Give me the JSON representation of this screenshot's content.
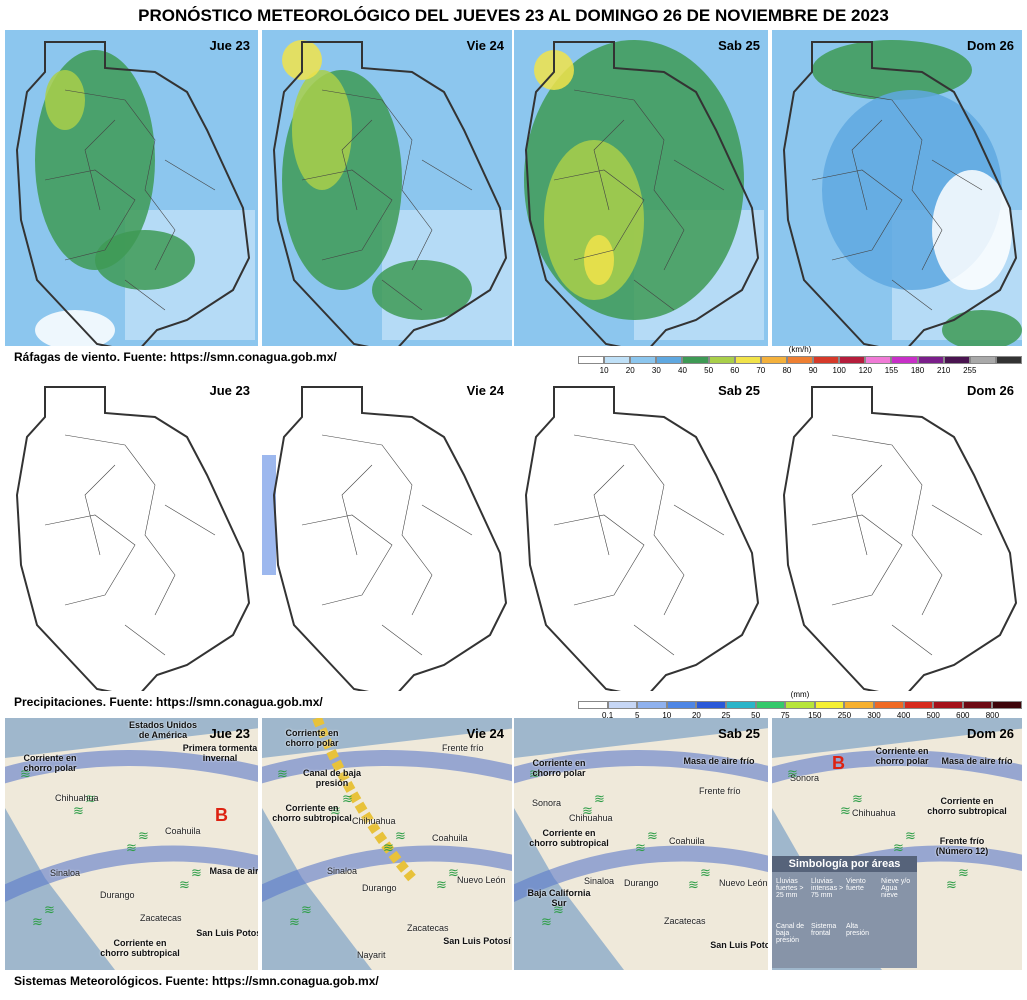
{
  "title": "PRONÓSTICO METEOROLÓGICO DEL JUEVES 23 AL DOMINGO 26 DE NOVIEMBRE DE 2023",
  "rows": [
    {
      "days": [
        "Jue 23",
        "Vie 24",
        "Sab 25",
        "Dom 26"
      ],
      "caption": "Ráfagas de viento.  Fuente: https://smn.conagua.gob.mx/",
      "scale": {
        "unit": "(km/h)",
        "labels": [
          "10",
          "20",
          "30",
          "40",
          "50",
          "60",
          "70",
          "80",
          "90",
          "100",
          "120",
          "155",
          "180",
          "210",
          "255"
        ],
        "colors": [
          "#ffffff",
          "#bfe0f7",
          "#8cc6ee",
          "#5fa8e0",
          "#3e9a55",
          "#a9cf4a",
          "#f1e34a",
          "#f4b13c",
          "#ee7f32",
          "#d63a2a",
          "#b51d3c",
          "#f07ad6",
          "#c82fc8",
          "#7a1e8a",
          "#4a1450",
          "#a9a9a9",
          "#333333"
        ]
      }
    },
    {
      "days": [
        "Jue 23",
        "Vie 24",
        "Sab 25",
        "Dom 26"
      ],
      "caption": "Precipitaciones.  Fuente: https://smn.conagua.gob.mx/",
      "scale": {
        "unit": "(mm)",
        "labels": [
          "0.1",
          "5",
          "10",
          "20",
          "25",
          "50",
          "75",
          "150",
          "250",
          "300",
          "400",
          "500",
          "600",
          "800"
        ],
        "colors": [
          "#ffffff",
          "#c6d6f5",
          "#8fb1ee",
          "#4f86e4",
          "#2b59d8",
          "#2bb5c9",
          "#35c96b",
          "#b7e43a",
          "#f5ef33",
          "#f6b02f",
          "#ef6a24",
          "#d62a1d",
          "#a5121a",
          "#6e0a14",
          "#3e050a"
        ]
      }
    },
    {
      "days": [
        "Jue 23",
        "Vie 24",
        "Sab 25",
        "Dom 26"
      ],
      "caption": "Sistemas Meteorológicos.   Fuente: https://smn.conagua.gob.mx/",
      "panels": [
        {
          "labels": [
            "Estados Unidos de América",
            "Corriente en chorro polar",
            "Primera tormenta invernal",
            "Chihuahua",
            "Coahuila",
            "Masa de aire frío",
            "Sinaloa",
            "Durango",
            "Zacatecas",
            "Corriente en chorro subtropical",
            "San Luis Potosí",
            "B"
          ]
        },
        {
          "labels": [
            "Corriente en chorro polar",
            "Frente frío",
            "Canal de baja presión",
            "Corriente en chorro subtropical",
            "Chihuahua",
            "Coahuila",
            "Sinaloa",
            "Durango",
            "Nuevo León",
            "Zacatecas",
            "Nayarit",
            "San Luis Potosí"
          ]
        },
        {
          "labels": [
            "Corriente en chorro polar",
            "Masa de aire frío",
            "Frente frío",
            "Sonora",
            "Chihuahua",
            "Coahuila",
            "Corriente en chorro subtropical",
            "Sinaloa",
            "Durango",
            "Nuevo León",
            "Zacatecas",
            "San Luis Potosí",
            "Baja California Sur"
          ]
        },
        {
          "labels": [
            "B",
            "Corriente en chorro polar",
            "Masa de aire frío",
            "Sonora",
            "Chihuahua",
            "Corriente en chorro subtropical",
            "Frente frío (Número 12)"
          ],
          "legend": {
            "title": "Simbología por áreas",
            "items": [
              "Lluvias fuertes > 25 mm",
              "Lluvias intensas > 75 mm",
              "Viento fuerte",
              "Nieve y/o Agua nieve",
              "Canal de baja presión",
              "Sistema frontal",
              "Alta presión"
            ]
          }
        }
      ]
    }
  ]
}
